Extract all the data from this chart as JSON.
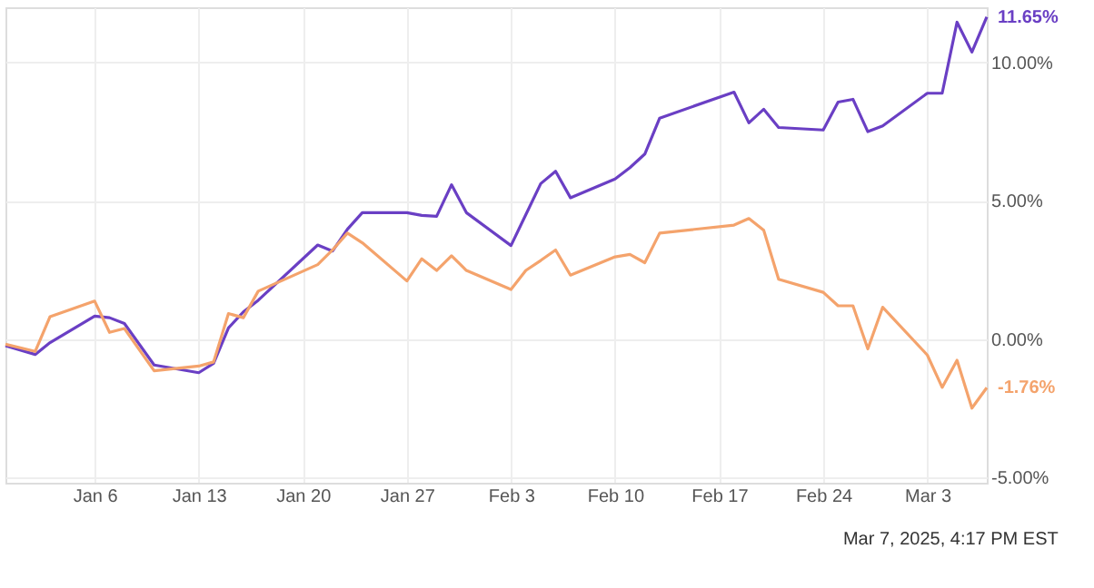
{
  "chart_data": {
    "type": "line",
    "annotations": [
      "Mar 7, 2025, 4:17 PM EST"
    ],
    "xlim": [
      "2024-12-31",
      "2025-03-07"
    ],
    "xticks": [
      {
        "value": "2025-01-06",
        "label": "Jan 6"
      },
      {
        "value": "2025-01-13",
        "label": "Jan 13"
      },
      {
        "value": "2025-01-20",
        "label": "Jan 20"
      },
      {
        "value": "2025-01-27",
        "label": "Jan 27"
      },
      {
        "value": "2025-02-03",
        "label": "Feb 3"
      },
      {
        "value": "2025-02-10",
        "label": "Feb 10"
      },
      {
        "value": "2025-02-17",
        "label": "Feb 17"
      },
      {
        "value": "2025-02-24",
        "label": "Feb 24"
      },
      {
        "value": "2025-03-03",
        "label": "Mar 3"
      }
    ],
    "ylim": [
      -5.2,
      12
    ],
    "yticks": [
      {
        "value": -5,
        "label": "-5.00%"
      },
      {
        "value": 0,
        "label": "0.00%"
      },
      {
        "value": 5,
        "label": "5.00%"
      },
      {
        "value": 10,
        "label": "10.00%"
      }
    ],
    "grid": true,
    "series": [
      {
        "color": "#6a3fc4",
        "x": [
          "2024-12-31",
          "2025-01-02",
          "2025-01-03",
          "2025-01-06",
          "2025-01-07",
          "2025-01-08",
          "2025-01-10",
          "2025-01-13",
          "2025-01-14",
          "2025-01-15",
          "2025-01-16",
          "2025-01-17",
          "2025-01-21",
          "2025-01-22",
          "2025-01-23",
          "2025-01-24",
          "2025-01-27",
          "2025-01-28",
          "2025-01-29",
          "2025-01-30",
          "2025-01-31",
          "2025-02-03",
          "2025-02-04",
          "2025-02-05",
          "2025-02-06",
          "2025-02-07",
          "2025-02-10",
          "2025-02-11",
          "2025-02-12",
          "2025-02-13",
          "2025-02-18",
          "2025-02-19",
          "2025-02-20",
          "2025-02-21",
          "2025-02-24",
          "2025-02-25",
          "2025-02-26",
          "2025-02-27",
          "2025-02-28",
          "2025-03-03",
          "2025-03-04",
          "2025-03-05",
          "2025-03-06",
          "2025-03-07"
        ],
        "values": [
          -0.24,
          -0.56,
          -0.13,
          0.83,
          0.77,
          0.56,
          -0.94,
          -1.22,
          -0.88,
          0.4,
          0.98,
          1.4,
          3.4,
          3.18,
          3.97,
          4.57,
          4.57,
          4.47,
          4.44,
          5.58,
          4.57,
          3.38,
          4.5,
          5.62,
          6.07,
          5.11,
          5.79,
          6.2,
          6.69,
          7.99,
          8.93,
          7.82,
          8.31,
          7.65,
          7.56,
          8.57,
          8.67,
          7.5,
          7.71,
          8.89,
          8.89,
          11.46,
          10.38,
          11.65
        ],
        "value_labels": [
          null,
          null,
          null,
          null,
          null,
          null,
          null,
          null,
          null,
          null,
          null,
          null,
          null,
          null,
          null,
          null,
          null,
          null,
          null,
          null,
          null,
          null,
          null,
          null,
          null,
          null,
          null,
          null,
          null,
          null,
          null,
          null,
          null,
          null,
          null,
          null,
          null,
          null,
          null,
          null,
          null,
          null,
          null,
          "11.65%"
        ]
      },
      {
        "color": "#f4a36c",
        "x": [
          "2024-12-31",
          "2025-01-02",
          "2025-01-03",
          "2025-01-06",
          "2025-01-07",
          "2025-01-08",
          "2025-01-10",
          "2025-01-13",
          "2025-01-14",
          "2025-01-15",
          "2025-01-16",
          "2025-01-17",
          "2025-01-21",
          "2025-01-22",
          "2025-01-23",
          "2025-01-24",
          "2025-01-27",
          "2025-01-28",
          "2025-01-29",
          "2025-01-30",
          "2025-01-31",
          "2025-02-03",
          "2025-02-04",
          "2025-02-05",
          "2025-02-06",
          "2025-02-07",
          "2025-02-10",
          "2025-02-11",
          "2025-02-12",
          "2025-02-13",
          "2025-02-18",
          "2025-02-19",
          "2025-02-20",
          "2025-02-21",
          "2025-02-24",
          "2025-02-25",
          "2025-02-26",
          "2025-02-27",
          "2025-02-28",
          "2025-03-03",
          "2025-03-04",
          "2025-03-05",
          "2025-03-06",
          "2025-03-07"
        ],
        "values": [
          -0.19,
          -0.45,
          0.81,
          1.37,
          0.24,
          0.38,
          -1.15,
          -0.98,
          -0.83,
          0.92,
          0.77,
          1.73,
          2.69,
          3.22,
          3.83,
          3.48,
          2.1,
          2.9,
          2.48,
          3.01,
          2.48,
          1.79,
          2.48,
          2.84,
          3.22,
          2.31,
          2.97,
          3.06,
          2.76,
          3.83,
          4.12,
          4.36,
          3.93,
          2.16,
          1.69,
          1.2,
          1.2,
          -0.36,
          1.15,
          -0.58,
          -1.75,
          -0.77,
          -2.5,
          -1.76
        ],
        "value_labels": [
          null,
          null,
          null,
          null,
          null,
          null,
          null,
          null,
          null,
          null,
          null,
          null,
          null,
          null,
          null,
          null,
          null,
          null,
          null,
          null,
          null,
          null,
          null,
          null,
          null,
          null,
          null,
          null,
          null,
          null,
          null,
          null,
          null,
          null,
          null,
          null,
          null,
          null,
          null,
          null,
          null,
          null,
          null,
          "-1.76%"
        ]
      }
    ]
  }
}
